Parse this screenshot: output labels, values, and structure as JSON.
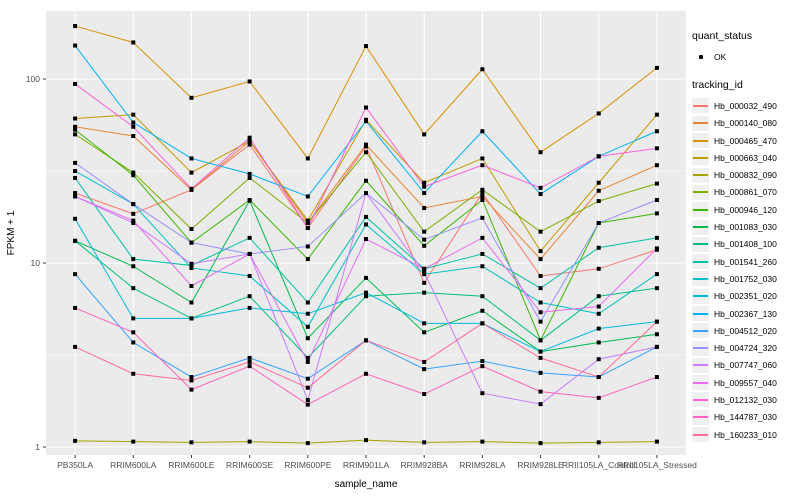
{
  "panel": {
    "bg_color": "#EBEBEB",
    "grid_color": "#FFFFFF",
    "tick_color": "#333333",
    "axis_text_color": "#4D4D4D",
    "point_color": "#000000"
  },
  "legend": {
    "quant_status_title": "quant_status",
    "quant_status_items": [
      {
        "label": "OK",
        "marker": "point"
      }
    ],
    "tracking_id_title": "tracking_id"
  },
  "chart_data": {
    "type": "line",
    "title": "",
    "xlabel": "sample_name",
    "ylabel": "FPKM + 1",
    "y_scale": "log10",
    "ylim": [
      1,
      230
    ],
    "y_ticks": [
      1,
      10,
      100
    ],
    "y_minor_ticks": [
      3.162,
      31.62
    ],
    "grid": true,
    "legend_position": "right",
    "marker": "square-point",
    "categories": [
      "PB350LA",
      "RRIM600LA",
      "RRIM600LE",
      "RRIM600SE",
      "RRIM600PE",
      "RRIM901LA",
      "RRIM928BA",
      "RRIM928LA",
      "RRIM928LE",
      "RRII105LA_Control",
      "RRII105LA_Stressed"
    ],
    "series": [
      {
        "name": "Hb_000032_490",
        "color": "#F8766D",
        "values": [
          24,
          18.5,
          25,
          44,
          15.5,
          43,
          7.8,
          24,
          8.5,
          9.3,
          11.8
        ]
      },
      {
        "name": "Hb_000140_080",
        "color": "#EA8331",
        "values": [
          55,
          49,
          25,
          46,
          16.5,
          44,
          19.9,
          23,
          10.5,
          24.7,
          34
        ]
      },
      {
        "name": "Hb_000465_470",
        "color": "#D89000",
        "values": [
          194,
          158,
          79,
          97,
          37,
          151,
          50,
          113,
          40,
          65,
          115
        ]
      },
      {
        "name": "Hb_000663_040",
        "color": "#C09B00",
        "values": [
          61,
          64,
          31,
          46,
          17,
          60,
          27.3,
          37,
          11.6,
          27.3,
          64
        ]
      },
      {
        "name": "Hb_000832_090",
        "color": "#A3A500",
        "values": [
          1.08,
          1.07,
          1.06,
          1.07,
          1.05,
          1.09,
          1.06,
          1.07,
          1.05,
          1.06,
          1.07
        ]
      },
      {
        "name": "Hb_000861_070",
        "color": "#7CAE00",
        "values": [
          50,
          31,
          15.3,
          29,
          16.5,
          40,
          14.8,
          25,
          14.8,
          21.7,
          27
        ]
      },
      {
        "name": "Hb_000946_120",
        "color": "#39B600",
        "values": [
          53,
          30,
          12.9,
          22,
          10.5,
          28,
          12.4,
          22,
          3.8,
          16.5,
          18.6
        ]
      },
      {
        "name": "Hb_001083_030",
        "color": "#00BB4E",
        "values": [
          13.2,
          9.6,
          6.1,
          21.8,
          3.9,
          8.3,
          4.2,
          5.5,
          3.3,
          3.7,
          4.1
        ]
      },
      {
        "name": "Hb_001408_100",
        "color": "#00BF7D",
        "values": [
          13.2,
          7.3,
          5.0,
          6.6,
          3.05,
          6.6,
          6.9,
          6.6,
          3.8,
          6.6,
          7.3
        ]
      },
      {
        "name": "Hb_001541_260",
        "color": "#00C1A3",
        "values": [
          29,
          10.5,
          9.7,
          13.7,
          6.1,
          17.8,
          9.3,
          11.2,
          7.3,
          12.1,
          13.7
        ]
      },
      {
        "name": "Hb_001752_030",
        "color": "#00BFC4",
        "values": [
          31.6,
          20.9,
          9.4,
          8.5,
          4.5,
          16.2,
          8.7,
          9.6,
          6.1,
          5.3,
          8.7
        ]
      },
      {
        "name": "Hb_002351_020",
        "color": "#00BAE0",
        "values": [
          17.4,
          5.0,
          5.0,
          5.7,
          5.3,
          6.9,
          4.7,
          4.7,
          3.3,
          4.4,
          4.8
        ]
      },
      {
        "name": "Hb_002367_130",
        "color": "#00B0F6",
        "values": [
          152,
          58,
          37,
          30.5,
          23,
          59,
          24,
          52,
          23.7,
          38,
          52
        ]
      },
      {
        "name": "Hb_004512_020",
        "color": "#35A2FF",
        "values": [
          8.7,
          3.7,
          2.4,
          3.05,
          2.35,
          3.8,
          2.65,
          2.93,
          2.53,
          2.4,
          3.5
        ]
      },
      {
        "name": "Hb_004724_320",
        "color": "#9590FF",
        "values": [
          35,
          20.9,
          12.9,
          11.2,
          12.3,
          24,
          13.4,
          17.6,
          4.8,
          16.5,
          22
        ]
      },
      {
        "name": "Hb_007747_060",
        "color": "#C77CFF",
        "values": [
          23,
          16.5,
          9.9,
          11.2,
          1.8,
          24,
          8.9,
          1.96,
          1.71,
          3.0,
          3.5
        ]
      },
      {
        "name": "Hb_009557_040",
        "color": "#E76BF3",
        "values": [
          23,
          17,
          7.5,
          11.2,
          2.9,
          13.5,
          9.3,
          13.7,
          5.4,
          5.8,
          12
        ]
      },
      {
        "name": "Hb_012132_030",
        "color": "#FA62DB",
        "values": [
          94,
          55,
          25.3,
          48,
          15.5,
          70,
          26,
          34,
          25.6,
          38,
          42
        ]
      },
      {
        "name": "Hb_144787_030",
        "color": "#FF62BC",
        "values": [
          5.7,
          4.2,
          2.05,
          2.75,
          1.7,
          2.5,
          1.94,
          2.75,
          2.0,
          1.85,
          2.4
        ]
      },
      {
        "name": "Hb_160233_010",
        "color": "#FF6A98",
        "values": [
          3.5,
          2.5,
          2.3,
          2.9,
          2.1,
          3.8,
          2.9,
          4.7,
          3.05,
          2.4,
          4.8
        ]
      }
    ]
  }
}
